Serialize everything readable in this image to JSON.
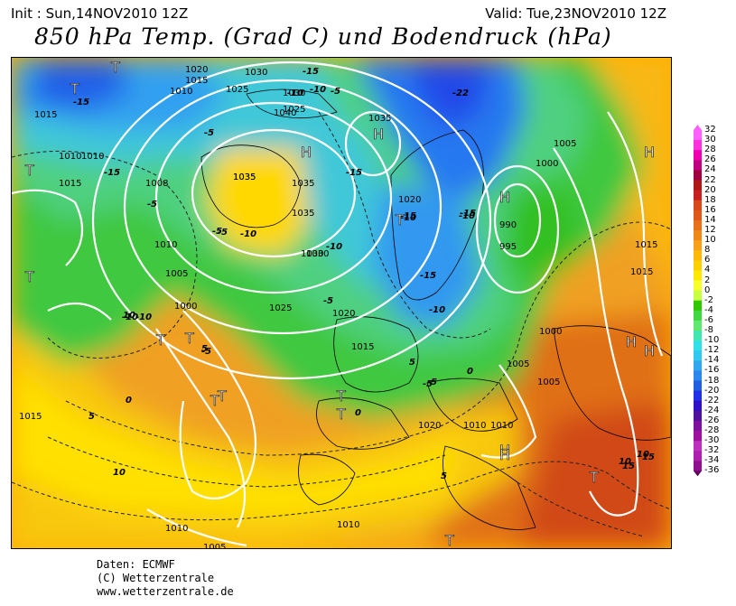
{
  "header": {
    "init": "Init : Sun,14NOV2010 12Z",
    "valid": "Valid: Tue,23NOV2010 12Z",
    "title": "850 hPa Temp. (Grad C) und Bodendruck (hPa)"
  },
  "legend": {
    "labels": [
      "32",
      "30",
      "28",
      "26",
      "24",
      "22",
      "20",
      "18",
      "16",
      "14",
      "12",
      "10",
      "8",
      "6",
      "4",
      "2",
      "0",
      "-2",
      "-4",
      "-6",
      "-8",
      "-10",
      "-12",
      "-14",
      "-16",
      "-18",
      "-20",
      "-22",
      "-24",
      "-26",
      "-28",
      "-30",
      "-32",
      "-34",
      "-36"
    ],
    "colors": [
      "#ff60ff",
      "#ff30e0",
      "#f000b0",
      "#c00080",
      "#a00040",
      "#b01818",
      "#c82020",
      "#d84818",
      "#e05818",
      "#e87018",
      "#f08818",
      "#f8a018",
      "#ffb808",
      "#ffd000",
      "#ffe800",
      "#f8ff28",
      "#c8ff40",
      "#30c800",
      "#40d840",
      "#60e870",
      "#40e8b0",
      "#30e0e8",
      "#30c8f0",
      "#30a8f0",
      "#2888f0",
      "#2060e0",
      "#2030e8",
      "#3010c8",
      "#5010a0",
      "#8010a0",
      "#a010a0",
      "#c030c0",
      "#b020b0",
      "#901090",
      "#600060"
    ]
  },
  "map": {
    "pressure_labels": [
      "1020",
      "1015",
      "1010",
      "1025",
      "1030",
      "1030",
      "1040",
      "1035",
      "1015",
      "1010",
      "1015",
      "1010",
      "1008",
      "1035",
      "1035",
      "1035",
      "1030",
      "1020",
      "1010",
      "1005",
      "1000",
      "1025",
      "1020",
      "1015",
      "990",
      "995",
      "1000",
      "1005",
      "1005",
      "1015",
      "1020",
      "1005",
      "1000",
      "1005",
      "1010",
      "1010",
      "1015",
      "1015",
      "1010",
      "1010",
      "1025",
      "1035",
      "1030"
    ],
    "temp_labels": [
      "-15",
      "-15",
      "-10",
      "-10",
      "-5",
      "-5",
      "-10",
      "-5",
      "-10",
      "-5",
      "-15",
      "-22",
      "-15",
      "-15",
      "-15",
      "-10",
      "-5",
      "0",
      "-5",
      "0",
      "-5",
      "0",
      "5",
      "5",
      "5",
      "10",
      "10",
      "10",
      "10",
      "15",
      "15",
      "-10",
      "-10",
      "-15",
      "-5",
      "-10",
      "-5",
      "5",
      "-10"
    ],
    "pressure_centers": [
      "T",
      "T",
      "T",
      "T",
      "T",
      "H",
      "H",
      "H",
      "H",
      "H",
      "T",
      "T",
      "T",
      "T",
      "T",
      "T",
      "H",
      "H",
      "T",
      "H",
      "T"
    ]
  },
  "credits": {
    "line1": "Daten: ECMWF",
    "line2": "(C) Wetterzentrale",
    "line3": "www.wetterzentrale.de"
  }
}
